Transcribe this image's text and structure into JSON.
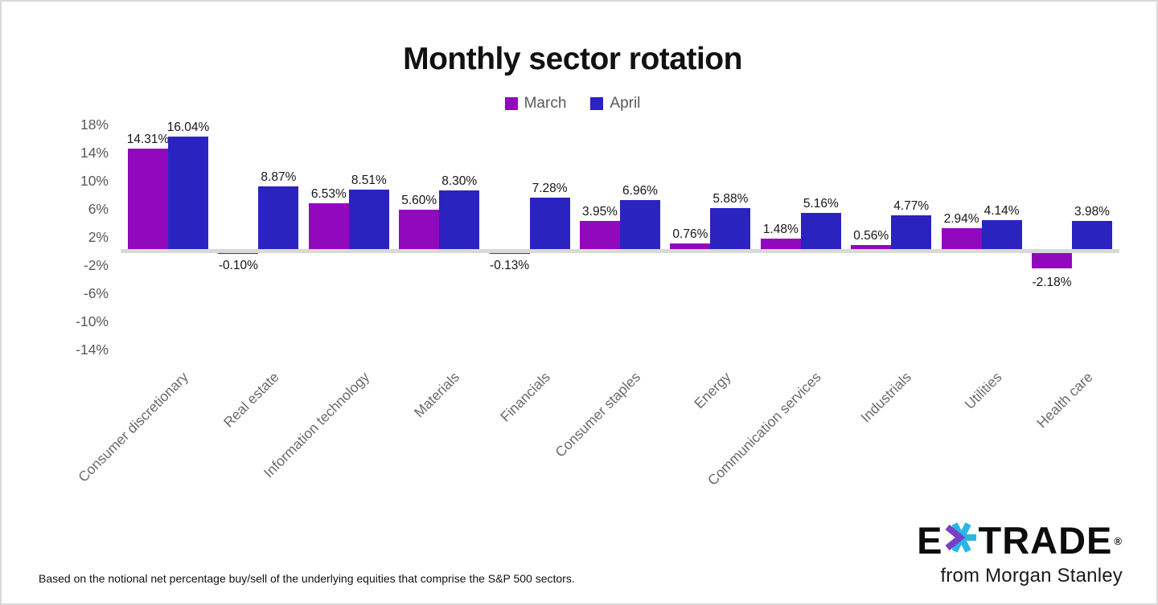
{
  "title": "Monthly sector rotation",
  "legend": {
    "items": [
      {
        "label": "March",
        "color": "#9208BC"
      },
      {
        "label": "April",
        "color": "#2B23C0"
      }
    ]
  },
  "chart_data": {
    "type": "bar",
    "title": "Monthly sector rotation",
    "categories": [
      "Consumer discretionary",
      "Real estate",
      "Information technology",
      "Materials",
      "Financials",
      "Consumer staples",
      "Energy",
      "Communication services",
      "Industrials",
      "Utilities",
      "Health care"
    ],
    "series": [
      {
        "name": "March",
        "color": "#9208BC",
        "values": [
          14.31,
          -0.1,
          6.53,
          5.6,
          -0.13,
          3.95,
          0.76,
          1.48,
          0.56,
          2.94,
          -2.18
        ]
      },
      {
        "name": "April",
        "color": "#2B23C0",
        "values": [
          16.04,
          8.87,
          8.51,
          8.3,
          7.28,
          6.96,
          5.88,
          5.16,
          4.77,
          4.14,
          3.98
        ]
      }
    ],
    "value_label_format": "0.00%",
    "y_ticks": [
      "18%",
      "14%",
      "10%",
      "6%",
      "2%",
      "-2%",
      "-6%",
      "-10%",
      "-14%"
    ],
    "y_tick_values": [
      18,
      14,
      10,
      6,
      2,
      -2,
      -6,
      -10,
      -14
    ],
    "ylim": [
      -16,
      19
    ],
    "xlabel": "",
    "ylabel": "",
    "grid": false,
    "legend_position": "top"
  },
  "footnote": "Based on the notional net percentage buy/sell of the underlying equities that comprise the S&P 500 sectors.",
  "branding": {
    "logo_left": "E",
    "logo_right": "TRADE",
    "registered": "®",
    "tagline": "from Morgan Stanley",
    "asterisk_purple": "#7B3FC6",
    "asterisk_cyan": "#29B5E8"
  },
  "colors": {
    "axis_line": "#D9D9D9",
    "tick_text": "#595959",
    "category_text": "#6A6A6A",
    "value_text": "#161616"
  }
}
